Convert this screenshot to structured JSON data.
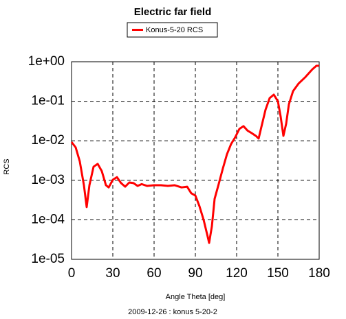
{
  "chart_data": {
    "type": "line",
    "title": "Electric far field",
    "xlabel": "Angle Theta [deg]",
    "ylabel": "RCS",
    "caption": "2009-12-26 : konus 5-20-2",
    "x": [
      0,
      3,
      6,
      9,
      11,
      13,
      16,
      19,
      22,
      25,
      27,
      30,
      33,
      36,
      39,
      42,
      45,
      48,
      51,
      55,
      60,
      65,
      70,
      75,
      80,
      84,
      87,
      90,
      93,
      96,
      99,
      100,
      102,
      104,
      107,
      110,
      113,
      116,
      119,
      122,
      125,
      128,
      131,
      134,
      136,
      138,
      141,
      144,
      147,
      150,
      152,
      154,
      156,
      158,
      161,
      165,
      170,
      175,
      178,
      180
    ],
    "series": [
      {
        "name": "Konus-5-20 RCS",
        "color": "#ff0000",
        "values": [
          0.0093,
          0.0068,
          0.003,
          0.00075,
          0.00021,
          0.00075,
          0.0022,
          0.0026,
          0.0017,
          0.00075,
          0.00066,
          0.00103,
          0.0012,
          0.00085,
          0.00069,
          0.00088,
          0.00085,
          0.00072,
          0.0008,
          0.00072,
          0.00075,
          0.00075,
          0.00072,
          0.00075,
          0.00066,
          0.00069,
          0.00047,
          0.00041,
          0.00022,
          0.0001,
          3.7e-05,
          2.6e-05,
          6.8e-05,
          0.00034,
          0.00081,
          0.002,
          0.0046,
          0.0083,
          0.0123,
          0.02,
          0.0234,
          0.018,
          0.0156,
          0.0133,
          0.0114,
          0.0224,
          0.061,
          0.12,
          0.147,
          0.1,
          0.041,
          0.0133,
          0.027,
          0.084,
          0.18,
          0.28,
          0.41,
          0.64,
          0.79,
          0.79
        ]
      }
    ],
    "xlim": [
      0,
      180
    ],
    "xticks": [
      0,
      30,
      60,
      90,
      120,
      150,
      180
    ],
    "ylim": [
      1e-05,
      1
    ],
    "log_y": true,
    "yticks": [
      {
        "value": 1e-05,
        "label": "1e-05"
      },
      {
        "value": 0.0001,
        "label": "1e-04"
      },
      {
        "value": 0.001,
        "label": "1e-03"
      },
      {
        "value": 0.01,
        "label": "1e-02"
      },
      {
        "value": 0.1,
        "label": "1e-01"
      },
      {
        "value": 1,
        "label": "1e+00"
      }
    ],
    "grid": true,
    "legend": "top"
  }
}
